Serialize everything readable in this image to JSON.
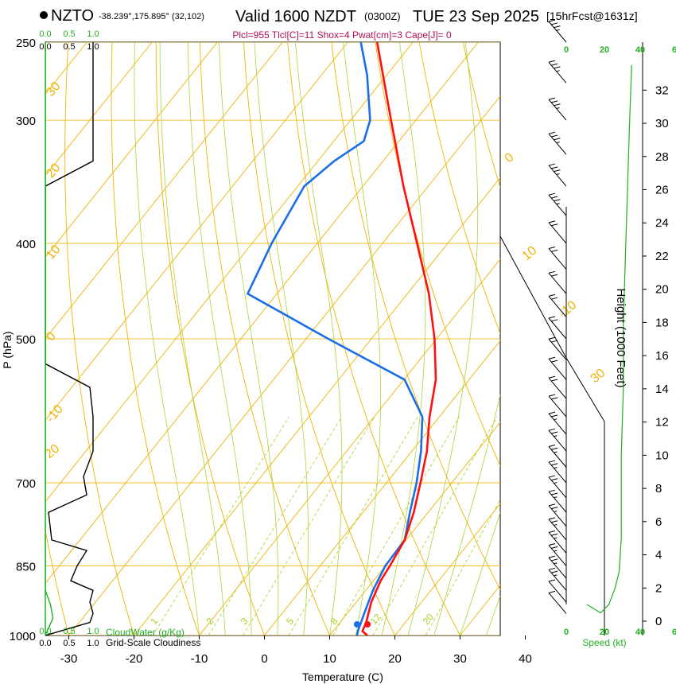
{
  "header": {
    "station": "NZTO",
    "location": "-38.239°,175.895° (32,102)",
    "valid": "Valid 1600 NZDT",
    "zulu": "(0300Z)",
    "date": "TUE 23 Sep 2025",
    "forecast": "[15hrFcst@1631z]",
    "indices": "Plcl=955 Tlcl[C]=11 Shox=4 Pwat[cm]=3 Cape[J]= 0"
  },
  "colors": {
    "temperature": "#ff1010",
    "dewpoint": "#1a6ee8",
    "isotherm": "#f0b400",
    "dry_adiabat": "#f0b400",
    "moist_adiabat": "#a8d63a",
    "mixing_ratio": "#a8d020",
    "cloud": "#22b022",
    "wind": "#000000"
  },
  "labels": {
    "p_axis": "P (hPa)",
    "t_axis": "Temperature (C)",
    "height_axis": "Height (1000 Feet)",
    "cloud_water": "CloudWater (g/Kg)",
    "cloudiness": "Grid-Scale Cloudiness",
    "speed": "Speed (kt)"
  },
  "scale_ticks": [
    "0.0",
    "0.5",
    "1.0"
  ],
  "speed_ticks": [
    "0",
    "20",
    "40"
  ],
  "speed_top_ticks": [
    "0",
    "20",
    "40",
    "6"
  ],
  "chart_data": {
    "type": "line",
    "title": "Skew-T Log-P sounding NZTO",
    "xlabel": "Temperature (C)",
    "ylabel": "P (hPa)",
    "ylim": [
      1000,
      250
    ],
    "xlim": [
      -35,
      50
    ],
    "pressure_ticks": [
      250,
      300,
      400,
      500,
      700,
      850,
      1000
    ],
    "temperature_ticks": [
      -30,
      -20,
      -10,
      0,
      10,
      20,
      30,
      40
    ],
    "height_ticks": [
      0,
      2,
      4,
      6,
      8,
      10,
      12,
      14,
      16,
      18,
      20,
      22,
      24,
      26,
      28,
      30,
      32
    ],
    "isotherm_labels": [
      {
        "text": "-10",
        "t": -10
      },
      {
        "text": "0",
        "t": 0
      },
      {
        "text": "10",
        "t": 10
      },
      {
        "text": "20",
        "t": 20
      },
      {
        "text": "30",
        "t": 30
      },
      {
        "text": "40",
        "t": 40
      }
    ],
    "adiabat_labels": [
      "10",
      "0",
      "-10",
      "20",
      "30"
    ],
    "mixing_ratio_labels": [
      "1",
      "2",
      "3",
      "5",
      "8",
      "12",
      "20"
    ],
    "series": [
      {
        "name": "Temperature",
        "points": [
          {
            "p": 1000,
            "t": 15.8
          },
          {
            "p": 990,
            "t": 14.5
          },
          {
            "p": 970,
            "t": 14.0
          },
          {
            "p": 925,
            "t": 12.3
          },
          {
            "p": 880,
            "t": 11.1
          },
          {
            "p": 850,
            "t": 10.7
          },
          {
            "p": 800,
            "t": 9.8
          },
          {
            "p": 750,
            "t": 7.8
          },
          {
            "p": 700,
            "t": 5.2
          },
          {
            "p": 650,
            "t": 2.3
          },
          {
            "p": 600,
            "t": -1.5
          },
          {
            "p": 550,
            "t": -5.1
          },
          {
            "p": 500,
            "t": -10.3
          },
          {
            "p": 450,
            "t": -16.7
          },
          {
            "p": 400,
            "t": -24.7
          },
          {
            "p": 350,
            "t": -33.8
          },
          {
            "p": 300,
            "t": -43.8
          },
          {
            "p": 250,
            "t": -55.5
          }
        ]
      },
      {
        "name": "Dewpoint",
        "points": [
          {
            "p": 1000,
            "t": 14.2
          },
          {
            "p": 990,
            "t": 13.8
          },
          {
            "p": 950,
            "t": 12.6
          },
          {
            "p": 900,
            "t": 11.1
          },
          {
            "p": 850,
            "t": 10.0
          },
          {
            "p": 800,
            "t": 9.8
          },
          {
            "p": 750,
            "t": 7.2
          },
          {
            "p": 700,
            "t": 4.6
          },
          {
            "p": 650,
            "t": 1.4
          },
          {
            "p": 600,
            "t": -2.6
          },
          {
            "p": 550,
            "t": -9.9
          },
          {
            "p": 500,
            "t": -26.6
          },
          {
            "p": 450,
            "t": -44.5
          },
          {
            "p": 400,
            "t": -47.0
          },
          {
            "p": 350,
            "t": -49.0
          },
          {
            "p": 330,
            "t": -47.5
          },
          {
            "p": 315,
            "t": -45.4
          },
          {
            "p": 300,
            "t": -47.0
          },
          {
            "p": 270,
            "t": -53.0
          },
          {
            "p": 250,
            "t": -58.0
          }
        ]
      },
      {
        "name": "Grid-Scale Cloudiness",
        "points": [
          {
            "p": 1000,
            "value": 0.0
          },
          {
            "p": 970,
            "value": 0.7
          },
          {
            "p": 950,
            "value": 0.75
          },
          {
            "p": 925,
            "value": 0.7
          },
          {
            "p": 900,
            "value": 0.75
          },
          {
            "p": 880,
            "value": 0.4
          },
          {
            "p": 850,
            "value": 0.5
          },
          {
            "p": 820,
            "value": 0.65
          },
          {
            "p": 800,
            "value": 0.1
          },
          {
            "p": 750,
            "value": 0.05
          },
          {
            "p": 720,
            "value": 0.65
          },
          {
            "p": 690,
            "value": 0.6
          },
          {
            "p": 650,
            "value": 0.75
          },
          {
            "p": 600,
            "value": 0.75
          },
          {
            "p": 560,
            "value": 0.7
          },
          {
            "p": 530,
            "value": 0.0
          },
          {
            "p": 350,
            "value": 0.0
          },
          {
            "p": 330,
            "value": 0.75
          },
          {
            "p": 250,
            "value": 0.75
          }
        ]
      },
      {
        "name": "CloudWater",
        "points": [
          {
            "p": 1000,
            "value": 0.0
          },
          {
            "p": 960,
            "value": 0.12
          },
          {
            "p": 930,
            "value": 0.08
          },
          {
            "p": 900,
            "value": 0.0
          },
          {
            "p": 250,
            "value": 0.0
          }
        ]
      },
      {
        "name": "Wind speed (kt)",
        "points": [
          {
            "height_kft": 0.5,
            "speed": 2
          },
          {
            "height_kft": 1.0,
            "speed": 6
          },
          {
            "height_kft": 2.0,
            "speed": 9
          },
          {
            "height_kft": 3.0,
            "speed": 11
          },
          {
            "height_kft": 5.0,
            "speed": 12
          },
          {
            "height_kft": 8.0,
            "speed": 12
          },
          {
            "height_kft": 10.0,
            "speed": 12
          },
          {
            "height_kft": 14.0,
            "speed": 13
          },
          {
            "height_kft": 18.0,
            "speed": 13
          },
          {
            "height_kft": 22.0,
            "speed": 14
          },
          {
            "height_kft": 26.0,
            "speed": 15
          },
          {
            "height_kft": 30.0,
            "speed": 16
          },
          {
            "height_kft": 33.5,
            "speed": 17
          }
        ]
      }
    ],
    "wind_barbs": [
      {
        "p": 950,
        "dir": 270,
        "speed": 10
      },
      {
        "p": 925,
        "dir": 275,
        "speed": 12
      },
      {
        "p": 900,
        "dir": 280,
        "speed": 15
      },
      {
        "p": 875,
        "dir": 280,
        "speed": 15
      },
      {
        "p": 850,
        "dir": 285,
        "speed": 15
      },
      {
        "p": 825,
        "dir": 290,
        "speed": 15
      },
      {
        "p": 800,
        "dir": 295,
        "speed": 15
      },
      {
        "p": 775,
        "dir": 300,
        "speed": 15
      },
      {
        "p": 750,
        "dir": 300,
        "speed": 15
      },
      {
        "p": 725,
        "dir": 305,
        "speed": 15
      },
      {
        "p": 700,
        "dir": 305,
        "speed": 15
      },
      {
        "p": 675,
        "dir": 305,
        "speed": 15
      },
      {
        "p": 650,
        "dir": 305,
        "speed": 15
      },
      {
        "p": 625,
        "dir": 305,
        "speed": 15
      },
      {
        "p": 600,
        "dir": 305,
        "speed": 20
      },
      {
        "p": 575,
        "dir": 305,
        "speed": 20
      },
      {
        "p": 550,
        "dir": 305,
        "speed": 20
      },
      {
        "p": 525,
        "dir": 305,
        "speed": 20
      },
      {
        "p": 500,
        "dir": 305,
        "speed": 20
      },
      {
        "p": 475,
        "dir": 305,
        "speed": 20
      },
      {
        "p": 450,
        "dir": 305,
        "speed": 20
      },
      {
        "p": 425,
        "dir": 305,
        "speed": 20
      },
      {
        "p": 400,
        "dir": 305,
        "speed": 20
      },
      {
        "p": 375,
        "dir": 305,
        "speed": 25
      },
      {
        "p": 350,
        "dir": 305,
        "speed": 25
      },
      {
        "p": 325,
        "dir": 305,
        "speed": 25
      },
      {
        "p": 300,
        "dir": 305,
        "speed": 25
      },
      {
        "p": 275,
        "dir": 305,
        "speed": 25
      },
      {
        "p": 250,
        "dir": 305,
        "speed": 25
      }
    ]
  }
}
